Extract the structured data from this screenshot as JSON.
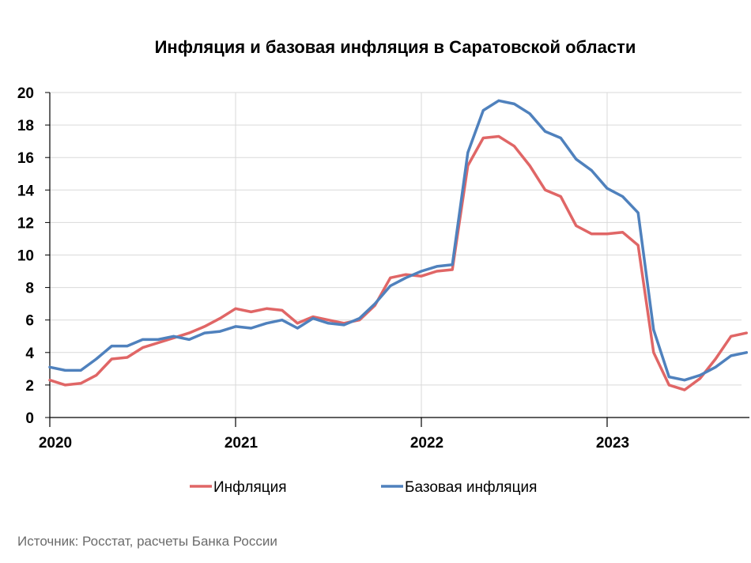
{
  "chart_data": {
    "type": "line",
    "title": "Инфляция и базовая инфляция в Саратовской области",
    "source": "Источник: Росстат, расчеты Банка России",
    "ylim": [
      0,
      20
    ],
    "yticks": [
      "0",
      "2",
      "4",
      "6",
      "8",
      "10",
      "12",
      "14",
      "16",
      "18",
      "20"
    ],
    "xticks": [
      "2020",
      "2021",
      "2022",
      "2023"
    ],
    "grid": "horizontal and vertical at year starts",
    "legend_placement": "bottom",
    "x_start": "2020-01",
    "x_step": "month",
    "series": [
      {
        "name": "Инфляция",
        "color": "#e06666",
        "values": [
          2.3,
          2.0,
          2.1,
          2.6,
          3.6,
          3.7,
          4.3,
          4.6,
          4.9,
          5.2,
          5.6,
          6.1,
          6.7,
          6.5,
          6.7,
          6.6,
          5.8,
          6.2,
          6.0,
          5.8,
          6.0,
          6.9,
          8.6,
          8.8,
          8.7,
          9.0,
          9.1,
          15.5,
          17.2,
          17.3,
          16.7,
          15.5,
          14.0,
          13.6,
          11.8,
          11.3,
          11.3,
          11.4,
          10.6,
          4.0,
          2.0,
          1.7,
          2.4,
          3.6,
          5.0,
          5.2
        ]
      },
      {
        "name": "Базовая инфляция",
        "color": "#4f81bd",
        "values": [
          3.1,
          2.9,
          2.9,
          3.6,
          4.4,
          4.4,
          4.8,
          4.8,
          5.0,
          4.8,
          5.2,
          5.3,
          5.6,
          5.5,
          5.8,
          6.0,
          5.5,
          6.1,
          5.8,
          5.7,
          6.1,
          7.0,
          8.1,
          8.6,
          9.0,
          9.3,
          9.4,
          16.3,
          18.9,
          19.5,
          19.3,
          18.7,
          17.6,
          17.2,
          15.9,
          15.2,
          14.1,
          13.6,
          12.6,
          5.4,
          2.5,
          2.3,
          2.6,
          3.1,
          3.8,
          4.0
        ]
      }
    ]
  }
}
